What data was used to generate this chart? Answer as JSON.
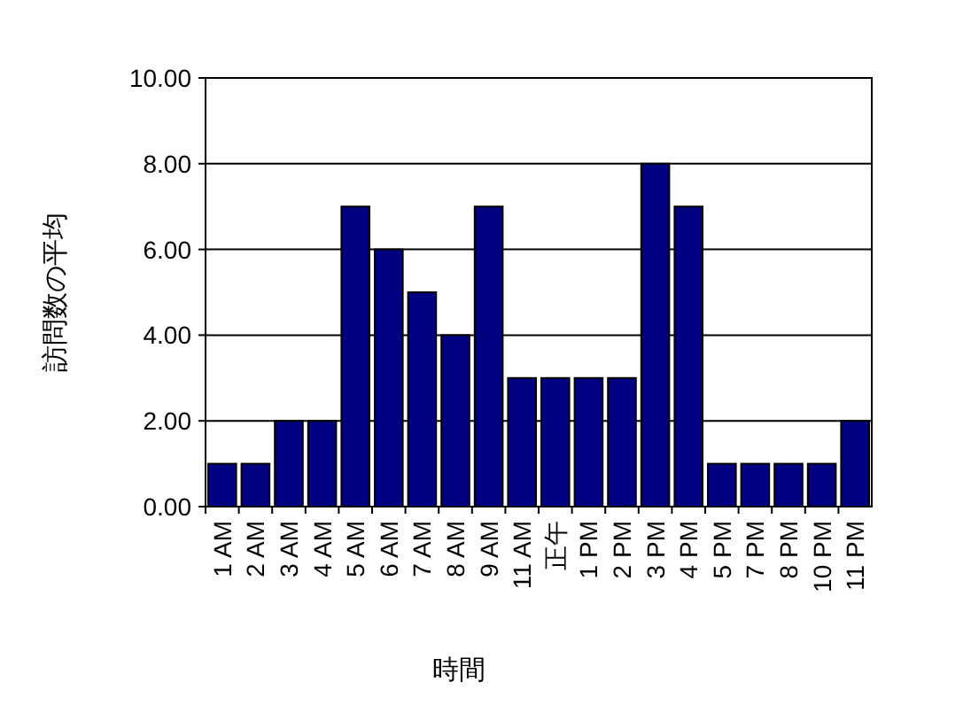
{
  "chart_data": {
    "type": "bar",
    "xlabel": "時間",
    "ylabel": "訪問数の平均",
    "categories": [
      "1 AM",
      "2 AM",
      "3 AM",
      "4 AM",
      "5 AM",
      "6 AM",
      "7 AM",
      "8 AM",
      "9 AM",
      "11 AM",
      "正午",
      "1 PM",
      "2 PM",
      "3 PM",
      "4 PM",
      "5 PM",
      "7 PM",
      "8 PM",
      "10 PM",
      "11 PM"
    ],
    "values": [
      1,
      1,
      2,
      2,
      7,
      6,
      5,
      4,
      7,
      3,
      3,
      3,
      3,
      8,
      7,
      1,
      1,
      1,
      1,
      2
    ],
    "color": "#000080",
    "ylim": [
      0,
      10
    ],
    "yticks": [
      {
        "value": 0,
        "label": "0.00"
      },
      {
        "value": 2,
        "label": "2.00"
      },
      {
        "value": 4,
        "label": "4.00"
      },
      {
        "value": 6,
        "label": "6.00"
      },
      {
        "value": 8,
        "label": "8.00"
      },
      {
        "value": 10,
        "label": "10.00"
      }
    ],
    "grid": "y"
  }
}
